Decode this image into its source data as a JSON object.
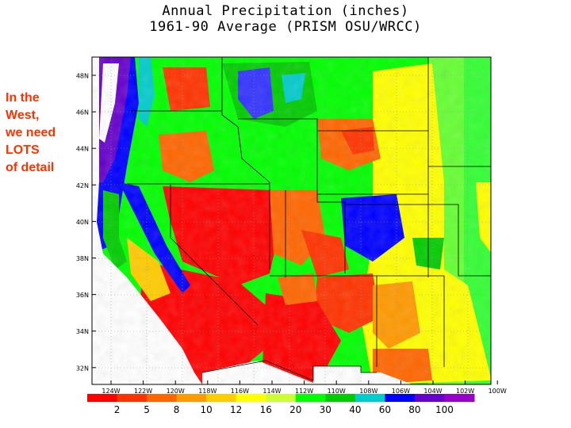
{
  "title": {
    "line1": "Annual Precipitation (inches)",
    "line2": "1961-90 Average (PRISM OSU/WRCC)"
  },
  "side_note": {
    "lines": [
      "In the",
      "West,",
      "we need",
      "LOTS",
      "of detail"
    ],
    "color": "#ff3300"
  },
  "map": {
    "lat_ticks": [
      "48N",
      "46N",
      "44N",
      "42N",
      "40N",
      "38N",
      "36N",
      "34N",
      "32N"
    ],
    "lon_ticks": [
      "124W",
      "122W",
      "120W",
      "118W",
      "116W",
      "114W",
      "112W",
      "110W",
      "108W",
      "106W",
      "104W",
      "102W",
      "100W"
    ]
  },
  "legend": {
    "labels": [
      "2",
      "5",
      "8",
      "10",
      "12",
      "16",
      "20",
      "30",
      "40",
      "60",
      "80",
      "100"
    ],
    "colors": [
      "#ff0000",
      "#ff3300",
      "#ff6600",
      "#ff9900",
      "#ffcc00",
      "#ffff00",
      "#ccff33",
      "#00ff00",
      "#00cc00",
      "#00cccc",
      "#0000ff",
      "#6600cc",
      "#9900cc"
    ]
  }
}
